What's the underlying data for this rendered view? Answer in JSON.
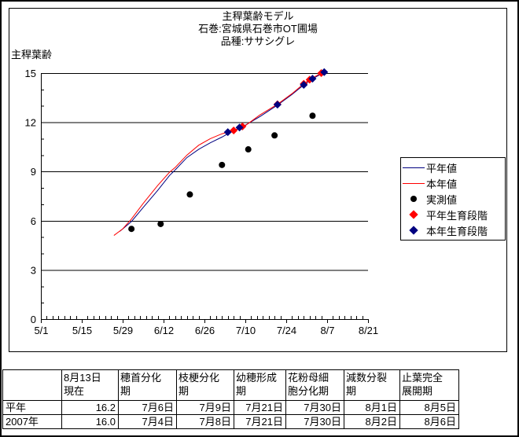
{
  "title": {
    "line1": "主稈葉齢モデル",
    "line2": "石巻:宮城県石巻市OT圃場",
    "line3": "品種:ササシグレ"
  },
  "colors": {
    "normal_year": "#000080",
    "this_year": "#ff0000",
    "measured": "#000000"
  },
  "legend": {
    "items": [
      {
        "label": "平年値",
        "swatch": "line-navy"
      },
      {
        "label": "本年値",
        "swatch": "line-red"
      },
      {
        "label": "実測値",
        "swatch": "dot-black"
      },
      {
        "label": "平年生育段階",
        "swatch": "diamond-red"
      },
      {
        "label": "本年生育段階",
        "swatch": "diamond-navy"
      }
    ]
  },
  "chart_data": {
    "type": "line",
    "title": "主稈葉齢モデル",
    "ylabel": "主稈葉齢",
    "ylim": [
      0,
      15
    ],
    "y_major_step": 3,
    "y_minor_step": 1,
    "x_ticks": [
      "5/1",
      "5/15",
      "5/29",
      "6/12",
      "6/26",
      "7/10",
      "7/24",
      "8/7",
      "8/21"
    ],
    "x_minor_step_days": 2,
    "grid": "horizontal-major",
    "legend_position": "right",
    "series": [
      {
        "name": "平年値",
        "type": "line",
        "color": "#000080",
        "points": [
          [
            "5/28",
            5.35
          ],
          [
            "6/1",
            5.95
          ],
          [
            "6/5",
            6.8
          ],
          [
            "6/10",
            7.85
          ],
          [
            "6/14",
            8.75
          ],
          [
            "6/16",
            9.1
          ],
          [
            "6/20",
            9.85
          ],
          [
            "6/24",
            10.35
          ],
          [
            "6/28",
            10.75
          ],
          [
            "7/2",
            11.1
          ],
          [
            "7/5",
            11.4
          ],
          [
            "7/9",
            11.72
          ],
          [
            "7/15",
            12.35
          ],
          [
            "7/21",
            13.05
          ],
          [
            "7/26",
            13.7
          ],
          [
            "7/30",
            14.28
          ],
          [
            "8/2",
            14.65
          ],
          [
            "8/6",
            15.05
          ],
          [
            "8/7",
            15.1
          ]
        ]
      },
      {
        "name": "本年値",
        "type": "line",
        "color": "#ff0000",
        "points": [
          [
            "5/26",
            5.1
          ],
          [
            "5/29",
            5.5
          ],
          [
            "6/1",
            6.1
          ],
          [
            "6/5",
            7.05
          ],
          [
            "6/10",
            8.15
          ],
          [
            "6/14",
            8.95
          ],
          [
            "6/16",
            9.25
          ],
          [
            "6/20",
            10.0
          ],
          [
            "6/24",
            10.6
          ],
          [
            "6/28",
            11.0
          ],
          [
            "7/2",
            11.3
          ],
          [
            "7/6",
            11.5
          ],
          [
            "7/10",
            11.8
          ],
          [
            "7/15",
            12.45
          ],
          [
            "7/21",
            13.1
          ],
          [
            "7/26",
            13.75
          ],
          [
            "7/30",
            14.35
          ],
          [
            "8/1",
            14.6
          ],
          [
            "8/5",
            15.0
          ],
          [
            "8/7",
            15.12
          ]
        ]
      },
      {
        "name": "実測値",
        "type": "scatter",
        "marker": "circle",
        "color": "#000000",
        "points": [
          [
            "6/1",
            5.5
          ],
          [
            "6/11",
            5.8
          ],
          [
            "6/21",
            7.6
          ],
          [
            "7/2",
            9.4
          ],
          [
            "7/11",
            10.35
          ],
          [
            "7/20",
            11.2
          ],
          [
            "8/2",
            12.4
          ]
        ]
      },
      {
        "name": "平年生育段階",
        "type": "scatter",
        "marker": "diamond",
        "color": "#ff0000",
        "points": [
          [
            "7/6",
            11.5
          ],
          [
            "7/9",
            11.75
          ],
          [
            "7/21",
            13.1
          ],
          [
            "7/30",
            14.35
          ],
          [
            "8/1",
            14.6
          ],
          [
            "8/5",
            15.0
          ]
        ]
      },
      {
        "name": "本年生育段階",
        "type": "scatter",
        "marker": "diamond",
        "color": "#000080",
        "points": [
          [
            "7/4",
            11.4
          ],
          [
            "7/8",
            11.68
          ],
          [
            "7/21",
            13.08
          ],
          [
            "7/30",
            14.28
          ],
          [
            "8/2",
            14.66
          ],
          [
            "8/6",
            15.06
          ]
        ]
      }
    ]
  },
  "table": {
    "columns": [
      "",
      "8月13日\n現在",
      "穂首分化\n期",
      "枝梗分化\n期",
      "幼穂形成\n期",
      "花粉母細\n胞分化期",
      "減数分裂\n期",
      "止葉完全\n展開期"
    ],
    "rows": [
      {
        "label": "平年",
        "values": [
          "16.2",
          "7月6日",
          "7月9日",
          "7月21日",
          "7月30日",
          "8月1日",
          "8月5日"
        ]
      },
      {
        "label": "2007年",
        "values": [
          "16.0",
          "7月4日",
          "7月8日",
          "7月21日",
          "7月30日",
          "8月2日",
          "8月6日"
        ]
      }
    ]
  }
}
